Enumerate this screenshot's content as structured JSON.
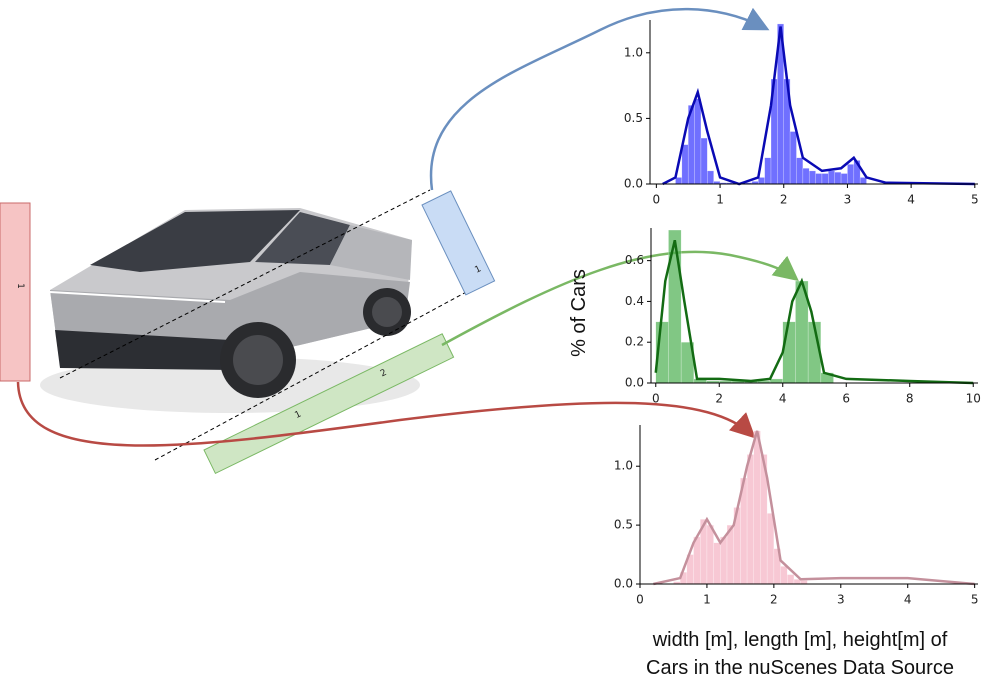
{
  "y_label": "% of Cars",
  "caption": [
    "width [m], length [m], height[m] of",
    "Cars in the nuScenes Data Source"
  ],
  "ruler_labels": [
    "1",
    "1",
    "1",
    "2"
  ],
  "chart_data": [
    {
      "type": "histogram",
      "color": "#3333ff",
      "line_color": "#0a0ab4",
      "bins": [
        0.3,
        0.4,
        0.5,
        0.6,
        0.7,
        0.8,
        0.9,
        1.0,
        1.1,
        1.2,
        1.3,
        1.4,
        1.5,
        1.6,
        1.7,
        1.8,
        1.9,
        2.0,
        2.1,
        2.2,
        2.3,
        2.4,
        2.5,
        2.6,
        2.7,
        2.8,
        2.9,
        3.0,
        3.1,
        3.2,
        3.3
      ],
      "values": [
        0.05,
        0.3,
        0.6,
        0.65,
        0.35,
        0.1,
        0.02,
        0.01,
        0.01,
        0.01,
        0.01,
        0.01,
        0.02,
        0.05,
        0.2,
        0.8,
        1.22,
        0.8,
        0.4,
        0.2,
        0.12,
        0.1,
        0.08,
        0.08,
        0.1,
        0.09,
        0.08,
        0.15,
        0.18,
        0.05
      ],
      "line_x": [
        0.1,
        0.3,
        0.5,
        0.65,
        0.8,
        1.0,
        1.3,
        1.6,
        1.8,
        1.95,
        2.1,
        2.3,
        2.6,
        2.9,
        3.1,
        3.3,
        3.6,
        5
      ],
      "line_values": [
        0,
        0.05,
        0.5,
        0.7,
        0.4,
        0.05,
        0,
        0.05,
        0.6,
        1.2,
        0.6,
        0.2,
        0.1,
        0.12,
        0.2,
        0.05,
        0.01,
        0
      ],
      "xlim": [
        -0.1,
        5.05
      ],
      "ylim": [
        0,
        1.25
      ],
      "xticks": [
        0,
        1,
        2,
        3,
        4,
        5
      ],
      "yticks": [
        {
          "value": 0,
          "label": "0.0"
        },
        {
          "value": 0.5,
          "label": "0.5"
        },
        {
          "value": 1,
          "label": "1.0"
        }
      ]
    },
    {
      "type": "histogram",
      "color": "#4caf50",
      "line_color": "#136b13",
      "bins": [
        0,
        0.4,
        0.8,
        1.2,
        1.6,
        2.0,
        2.4,
        2.8,
        3.2,
        3.6,
        4.0,
        4.4,
        4.8,
        5.2,
        5.6
      ],
      "values": [
        0.3,
        0.75,
        0.2,
        0.02,
        0.01,
        0.01,
        0.01,
        0.01,
        0.01,
        0.02,
        0.3,
        0.5,
        0.3,
        0.05
      ],
      "line_x": [
        0,
        0.3,
        0.6,
        0.9,
        1.3,
        2,
        3,
        3.6,
        4,
        4.3,
        4.6,
        4.9,
        5.3,
        6,
        8,
        10
      ],
      "line_values": [
        0.05,
        0.5,
        0.7,
        0.4,
        0.02,
        0.02,
        0.01,
        0.02,
        0.15,
        0.4,
        0.5,
        0.35,
        0.05,
        0.02,
        0.01,
        0
      ],
      "xlim": [
        -0.15,
        10.15
      ],
      "ylim": [
        0,
        0.76
      ],
      "xticks": [
        0,
        2,
        4,
        6,
        8,
        10
      ],
      "yticks": [
        {
          "value": 0,
          "label": "0.0"
        },
        {
          "value": 0.2,
          "label": "0.2"
        },
        {
          "value": 0.4,
          "label": "0.4"
        },
        {
          "value": 0.6,
          "label": "0.6"
        }
      ]
    },
    {
      "type": "histogram",
      "color": "#f4b0c2",
      "line_color": "#c4909c",
      "bins": [
        0.5,
        0.6,
        0.7,
        0.8,
        0.9,
        1.0,
        1.1,
        1.2,
        1.3,
        1.4,
        1.5,
        1.6,
        1.7,
        1.8,
        1.9,
        2.0,
        2.1,
        2.2,
        2.3,
        2.4,
        2.5
      ],
      "values": [
        0.02,
        0.1,
        0.25,
        0.4,
        0.55,
        0.5,
        0.35,
        0.4,
        0.5,
        0.65,
        0.9,
        1.1,
        1.3,
        1.1,
        0.6,
        0.3,
        0.15,
        0.08,
        0.04,
        0.03
      ],
      "line_x": [
        0.2,
        0.6,
        0.8,
        1.0,
        1.2,
        1.4,
        1.6,
        1.75,
        1.9,
        2.1,
        2.4,
        3,
        4,
        5
      ],
      "line_values": [
        0,
        0.05,
        0.35,
        0.55,
        0.35,
        0.5,
        1.0,
        1.3,
        0.9,
        0.2,
        0.04,
        0.05,
        0.05,
        0
      ],
      "xlim": [
        0,
        5.05
      ],
      "ylim": [
        0,
        1.35
      ],
      "xticks": [
        0,
        1,
        2,
        3,
        4,
        5
      ],
      "yticks": [
        {
          "value": 0,
          "label": "0.0"
        },
        {
          "value": 0.5,
          "label": "0.5"
        },
        {
          "value": 1,
          "label": "1.0"
        }
      ]
    }
  ]
}
